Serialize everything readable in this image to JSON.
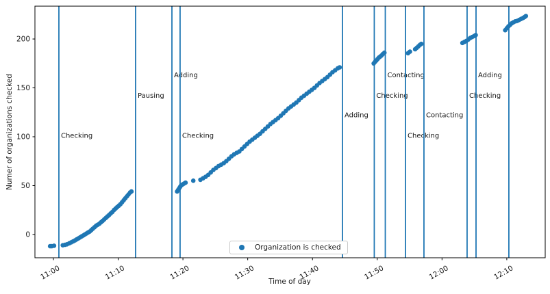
{
  "figure": {
    "xlabel": "Time of day",
    "ylabel": "Numer of organizations checked",
    "legend": {
      "label": "Organization is checked"
    },
    "colors": {
      "accent": "#1f77b4",
      "frame": "#000000",
      "background": "#ffffff",
      "legend_border": "#c9c9c9",
      "text": "#151515"
    }
  },
  "chart_data": {
    "type": "scatter",
    "title": "",
    "xlabel": "Time of day",
    "ylabel": "Numer of organizations checked",
    "x_unit": "minutes after 11:00",
    "xlim": [
      -2.85,
      75.93
    ],
    "ylim": [
      -23.8,
      233.6
    ],
    "grid": false,
    "legend": {
      "label": "Organization is checked",
      "position": "lower center"
    },
    "x_ticks": [
      {
        "t": 0,
        "label": "11:00"
      },
      {
        "t": 10,
        "label": "11:10"
      },
      {
        "t": 20,
        "label": "11:20"
      },
      {
        "t": 30,
        "label": "11:30"
      },
      {
        "t": 40,
        "label": "11:40"
      },
      {
        "t": 50,
        "label": "11:50"
      },
      {
        "t": 60,
        "label": "12:00"
      },
      {
        "t": 70,
        "label": "12:10"
      }
    ],
    "y_ticks": [
      0,
      50,
      100,
      150,
      200
    ],
    "vlines": [
      {
        "t": 0.85,
        "time": "11:01",
        "label": "Checking",
        "label_value": 101
      },
      {
        "t": 12.69,
        "time": "11:13",
        "label": "Pausing",
        "label_value": 142
      },
      {
        "t": 18.3,
        "time": "11:18",
        "label": "Adding",
        "label_value": 163
      },
      {
        "t": 19.56,
        "time": "11:20",
        "label": "Checking",
        "label_value": 101
      },
      {
        "t": 44.63,
        "time": "11:45",
        "label": "Adding",
        "label_value": 122
      },
      {
        "t": 49.54,
        "time": "11:50",
        "label": "Checking",
        "label_value": 142
      },
      {
        "t": 51.24,
        "time": "11:51",
        "label": "Contacting",
        "label_value": 163
      },
      {
        "t": 54.36,
        "time": "11:54",
        "label": "Checking",
        "label_value": 101
      },
      {
        "t": 57.21,
        "time": "11:57",
        "label": "Contacting",
        "label_value": 122
      },
      {
        "t": 63.87,
        "time": "12:04",
        "label": "Checking",
        "label_value": 142
      },
      {
        "t": 65.25,
        "time": "12:05",
        "label": "Adding",
        "label_value": 163
      },
      {
        "t": 70.32,
        "time": "12:10",
        "label": "",
        "label_value": null
      }
    ],
    "series": [
      {
        "name": "Organization is checked",
        "marker": "circle",
        "color": "#1f77b4",
        "points": [
          [
            -0.5,
            -12
          ],
          [
            -0.25,
            -12
          ],
          [
            0.1,
            -11.5
          ],
          [
            1.45,
            -11
          ],
          [
            1.8,
            -10.5
          ],
          [
            2.1,
            -10
          ],
          [
            2.45,
            -9
          ],
          [
            2.75,
            -8
          ],
          [
            3.05,
            -7
          ],
          [
            3.35,
            -6
          ],
          [
            3.6,
            -5
          ],
          [
            3.85,
            -4
          ],
          [
            4.1,
            -3
          ],
          [
            4.35,
            -2
          ],
          [
            4.6,
            -1
          ],
          [
            4.85,
            0
          ],
          [
            5.1,
            1
          ],
          [
            5.35,
            2
          ],
          [
            5.6,
            3
          ],
          [
            5.85,
            4.5
          ],
          [
            6.1,
            6
          ],
          [
            6.35,
            7.5
          ],
          [
            6.6,
            9
          ],
          [
            6.85,
            10
          ],
          [
            7.1,
            11
          ],
          [
            7.35,
            12.5
          ],
          [
            7.6,
            14
          ],
          [
            7.85,
            15.5
          ],
          [
            8.1,
            17
          ],
          [
            8.35,
            18.5
          ],
          [
            8.6,
            20
          ],
          [
            8.85,
            21.5
          ],
          [
            9.1,
            23
          ],
          [
            9.35,
            25
          ],
          [
            9.6,
            26.5
          ],
          [
            9.85,
            28
          ],
          [
            10.1,
            29.5
          ],
          [
            10.35,
            31
          ],
          [
            10.6,
            33
          ],
          [
            10.85,
            35
          ],
          [
            11.1,
            37
          ],
          [
            11.35,
            39
          ],
          [
            11.6,
            41
          ],
          [
            11.85,
            43
          ],
          [
            12.05,
            44
          ],
          [
            19.1,
            44
          ],
          [
            19.25,
            45.5
          ],
          [
            19.4,
            47
          ],
          [
            19.55,
            48.5
          ],
          [
            19.7,
            50
          ],
          [
            19.9,
            51
          ],
          [
            20.15,
            52
          ],
          [
            20.4,
            53
          ],
          [
            21.6,
            55
          ],
          [
            22.7,
            56
          ],
          [
            23.1,
            57.5
          ],
          [
            23.5,
            59
          ],
          [
            23.9,
            61
          ],
          [
            24.3,
            63.5
          ],
          [
            24.7,
            66
          ],
          [
            25.1,
            68
          ],
          [
            25.5,
            70
          ],
          [
            25.9,
            71.5
          ],
          [
            26.3,
            73
          ],
          [
            26.7,
            75
          ],
          [
            27.1,
            77.5
          ],
          [
            27.5,
            80
          ],
          [
            27.9,
            82
          ],
          [
            28.3,
            83.5
          ],
          [
            28.7,
            85
          ],
          [
            29.1,
            87.5
          ],
          [
            29.5,
            90
          ],
          [
            29.9,
            92.5
          ],
          [
            30.3,
            95
          ],
          [
            30.7,
            97
          ],
          [
            31.1,
            99
          ],
          [
            31.5,
            101
          ],
          [
            31.9,
            103
          ],
          [
            32.3,
            105.5
          ],
          [
            32.7,
            108
          ],
          [
            33.1,
            110.5
          ],
          [
            33.5,
            113
          ],
          [
            33.9,
            115
          ],
          [
            34.3,
            117
          ],
          [
            34.7,
            119
          ],
          [
            35.1,
            121.5
          ],
          [
            35.5,
            124
          ],
          [
            35.9,
            126.5
          ],
          [
            36.3,
            129
          ],
          [
            36.7,
            131
          ],
          [
            37.1,
            133
          ],
          [
            37.5,
            135
          ],
          [
            37.9,
            137.5
          ],
          [
            38.3,
            140
          ],
          [
            38.7,
            142
          ],
          [
            39.1,
            144
          ],
          [
            39.5,
            146
          ],
          [
            39.9,
            148
          ],
          [
            40.3,
            150
          ],
          [
            40.7,
            152.5
          ],
          [
            41.1,
            155
          ],
          [
            41.5,
            157
          ],
          [
            41.9,
            159
          ],
          [
            42.3,
            161
          ],
          [
            42.7,
            163.5
          ],
          [
            43.1,
            166
          ],
          [
            43.5,
            168
          ],
          [
            43.9,
            170
          ],
          [
            44.2,
            171
          ],
          [
            49.45,
            175
          ],
          [
            49.65,
            176.5
          ],
          [
            49.85,
            178
          ],
          [
            50.05,
            179.5
          ],
          [
            50.25,
            181
          ],
          [
            50.45,
            182
          ],
          [
            50.65,
            183
          ],
          [
            50.85,
            184.5
          ],
          [
            51.1,
            186
          ],
          [
            54.75,
            185.5
          ],
          [
            55.05,
            187
          ],
          [
            55.85,
            189.5
          ],
          [
            56.1,
            191
          ],
          [
            56.35,
            192.5
          ],
          [
            56.6,
            194
          ],
          [
            56.8,
            195
          ],
          [
            63.15,
            196
          ],
          [
            63.45,
            197
          ],
          [
            63.75,
            198
          ],
          [
            64.05,
            199.5
          ],
          [
            64.35,
            201
          ],
          [
            64.65,
            202
          ],
          [
            64.95,
            203
          ],
          [
            65.2,
            204
          ],
          [
            69.75,
            209
          ],
          [
            70.0,
            211
          ],
          [
            70.25,
            213
          ],
          [
            70.5,
            214.5
          ],
          [
            70.75,
            216
          ],
          [
            71.0,
            217
          ],
          [
            71.3,
            218
          ],
          [
            71.6,
            218.5
          ],
          [
            71.9,
            219.5
          ],
          [
            72.2,
            220.5
          ],
          [
            72.5,
            221.5
          ],
          [
            72.75,
            222.5
          ],
          [
            72.95,
            223.5
          ]
        ]
      }
    ]
  }
}
